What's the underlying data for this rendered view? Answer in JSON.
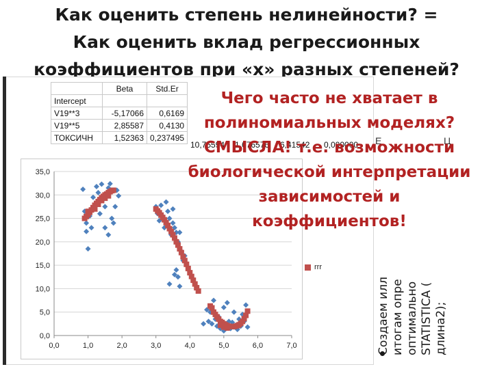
{
  "slide": {
    "title_lines": [
      "Как оценить степень нелинейности? =",
      "Как оценить вклад регрессионных",
      "коэффициентов  при «х» разных степеней?"
    ],
    "callout_lines": [
      "Чего часто не хватает в",
      "полиномиальных моделях?",
      "СМЫСЛА! т.е. возможности",
      "биологической интерпретации",
      "зависимостей и",
      "коэффициентов!"
    ],
    "side_text_lines": [
      "Создаем илл",
      "итогам опре",
      "оптимально",
      "STATISTICA (",
      "длина2);"
    ],
    "side_overflow_frags": [
      "Е",
      "Ц"
    ]
  },
  "regression_table": {
    "headers": [
      "",
      "Beta",
      "Std.Er"
    ],
    "rows": [
      {
        "name": "Intercept",
        "beta": "",
        "se": ""
      },
      {
        "name": "V19**3",
        "beta": "-5,17066",
        "se": "0,6169"
      },
      {
        "name": "V19**5",
        "beta": "2,85587",
        "se": "0,4130"
      },
      {
        "name": "ТОКСИЧН",
        "beta": "1,52363",
        "se": "0,237495"
      }
    ],
    "overflow_values": [
      "10,75594",
      "1,676576",
      "6,41542",
      "0,000000"
    ]
  },
  "chart_data": {
    "type": "scatter",
    "x_ticks": [
      "0,0",
      "1,0",
      "2,0",
      "3,0",
      "4,0",
      "5,0",
      "6,0",
      "7,0"
    ],
    "y_ticks": [
      "0,0",
      "5,0",
      "10,0",
      "15,0",
      "20,0",
      "25,0",
      "30,0",
      "35,0"
    ],
    "xlim": [
      0,
      7
    ],
    "ylim": [
      0,
      35
    ],
    "grid": true,
    "legend_position": "right",
    "series": [
      {
        "name": "",
        "marker": "diamond",
        "color": "#4f81bd",
        "points": [
          [
            0.85,
            31.2
          ],
          [
            0.9,
            26.5
          ],
          [
            0.95,
            22.2
          ],
          [
            1.0,
            18.5
          ],
          [
            1.05,
            25.5
          ],
          [
            1.1,
            27.0
          ],
          [
            1.15,
            29.5
          ],
          [
            1.2,
            28.0
          ],
          [
            1.25,
            31.8
          ],
          [
            1.3,
            30.5
          ],
          [
            1.35,
            26.0
          ],
          [
            1.4,
            32.3
          ],
          [
            1.45,
            29.0
          ],
          [
            1.5,
            27.5
          ],
          [
            1.55,
            30.0
          ],
          [
            1.6,
            31.5
          ],
          [
            1.65,
            32.4
          ],
          [
            1.7,
            25.0
          ],
          [
            1.75,
            24.0
          ],
          [
            1.8,
            27.5
          ],
          [
            1.85,
            31.0
          ],
          [
            1.9,
            29.8
          ],
          [
            0.95,
            24.0
          ],
          [
            1.1,
            23.0
          ],
          [
            1.5,
            23.0
          ],
          [
            1.6,
            21.5
          ],
          [
            3.0,
            27.5
          ],
          [
            3.05,
            26.0
          ],
          [
            3.1,
            24.5
          ],
          [
            3.15,
            27.8
          ],
          [
            3.2,
            25.5
          ],
          [
            3.25,
            23.0
          ],
          [
            3.3,
            28.5
          ],
          [
            3.35,
            26.5
          ],
          [
            3.4,
            25.0
          ],
          [
            3.45,
            21.5
          ],
          [
            3.5,
            24.0
          ],
          [
            3.55,
            23.0
          ],
          [
            3.6,
            22.0
          ],
          [
            3.65,
            20.0
          ],
          [
            3.7,
            22.0
          ],
          [
            3.75,
            18.0
          ],
          [
            3.8,
            16.0
          ],
          [
            3.85,
            17.0
          ],
          [
            3.4,
            11.0
          ],
          [
            3.6,
            14.0
          ],
          [
            3.65,
            12.5
          ],
          [
            3.7,
            10.5
          ],
          [
            3.55,
            13.0
          ],
          [
            3.5,
            27.0
          ],
          [
            4.5,
            5.5
          ],
          [
            4.55,
            3.0
          ],
          [
            4.6,
            5.0
          ],
          [
            4.65,
            2.5
          ],
          [
            4.7,
            7.5
          ],
          [
            4.75,
            3.5
          ],
          [
            4.8,
            2.0
          ],
          [
            4.85,
            4.0
          ],
          [
            4.9,
            1.5
          ],
          [
            4.95,
            2.5
          ],
          [
            5.0,
            1.0
          ],
          [
            5.05,
            2.0
          ],
          [
            5.1,
            7.0
          ],
          [
            5.15,
            3.0
          ],
          [
            5.2,
            1.5
          ],
          [
            5.25,
            2.8
          ],
          [
            5.3,
            1.8
          ],
          [
            5.35,
            2.2
          ],
          [
            5.4,
            1.3
          ],
          [
            5.45,
            3.5
          ],
          [
            5.5,
            2.0
          ],
          [
            5.55,
            4.5
          ],
          [
            5.6,
            3.0
          ],
          [
            5.65,
            6.5
          ],
          [
            5.7,
            1.8
          ],
          [
            5.0,
            6.0
          ],
          [
            4.4,
            2.5
          ],
          [
            5.3,
            5.0
          ]
        ]
      },
      {
        "name": "rrr",
        "marker": "square",
        "color": "#c0504d",
        "points": [
          [
            0.9,
            25.0
          ],
          [
            0.95,
            25.4
          ],
          [
            1.0,
            25.8
          ],
          [
            1.05,
            26.3
          ],
          [
            1.1,
            26.8
          ],
          [
            1.15,
            27.3
          ],
          [
            1.2,
            27.8
          ],
          [
            1.25,
            28.2
          ],
          [
            1.3,
            28.6
          ],
          [
            1.35,
            29.0
          ],
          [
            1.4,
            29.4
          ],
          [
            1.45,
            29.7
          ],
          [
            1.5,
            30.0
          ],
          [
            1.55,
            30.2
          ],
          [
            1.6,
            30.5
          ],
          [
            1.65,
            30.7
          ],
          [
            1.7,
            30.9
          ],
          [
            1.75,
            31.0
          ],
          [
            1.0,
            26.5
          ],
          [
            1.2,
            27.0
          ],
          [
            1.3,
            28.0
          ],
          [
            1.4,
            28.8
          ],
          [
            1.5,
            29.3
          ],
          [
            1.6,
            29.8
          ],
          [
            3.0,
            27.0
          ],
          [
            3.05,
            26.6
          ],
          [
            3.1,
            26.2
          ],
          [
            3.15,
            25.7
          ],
          [
            3.2,
            25.2
          ],
          [
            3.25,
            24.7
          ],
          [
            3.3,
            24.1
          ],
          [
            3.35,
            23.5
          ],
          [
            3.4,
            22.8
          ],
          [
            3.45,
            22.2
          ],
          [
            3.5,
            21.5
          ],
          [
            3.55,
            20.8
          ],
          [
            3.6,
            20.0
          ],
          [
            3.65,
            19.3
          ],
          [
            3.7,
            18.5
          ],
          [
            3.75,
            17.7
          ],
          [
            3.8,
            16.8
          ],
          [
            3.85,
            16.0
          ],
          [
            3.9,
            15.2
          ],
          [
            3.95,
            14.3
          ],
          [
            4.0,
            13.4
          ],
          [
            4.05,
            12.6
          ],
          [
            4.1,
            11.8
          ],
          [
            4.15,
            11.0
          ],
          [
            4.2,
            10.2
          ],
          [
            4.25,
            9.5
          ],
          [
            4.6,
            6.3
          ],
          [
            4.65,
            5.9
          ],
          [
            4.7,
            5.0
          ],
          [
            4.75,
            4.5
          ],
          [
            4.8,
            4.0
          ],
          [
            4.85,
            3.5
          ],
          [
            4.9,
            3.0
          ],
          [
            4.95,
            2.8
          ],
          [
            5.0,
            2.5
          ],
          [
            5.05,
            2.3
          ],
          [
            5.1,
            2.1
          ],
          [
            5.15,
            2.0
          ],
          [
            5.2,
            1.9
          ],
          [
            5.25,
            1.9
          ],
          [
            5.3,
            1.9
          ],
          [
            5.35,
            2.0
          ],
          [
            5.4,
            2.1
          ],
          [
            5.45,
            2.3
          ],
          [
            5.5,
            2.6
          ],
          [
            5.55,
            3.0
          ],
          [
            5.6,
            3.6
          ],
          [
            5.65,
            4.3
          ],
          [
            5.7,
            5.2
          ],
          [
            4.9,
            2.2
          ],
          [
            5.0,
            1.8
          ],
          [
            5.1,
            1.6
          ]
        ]
      }
    ]
  }
}
